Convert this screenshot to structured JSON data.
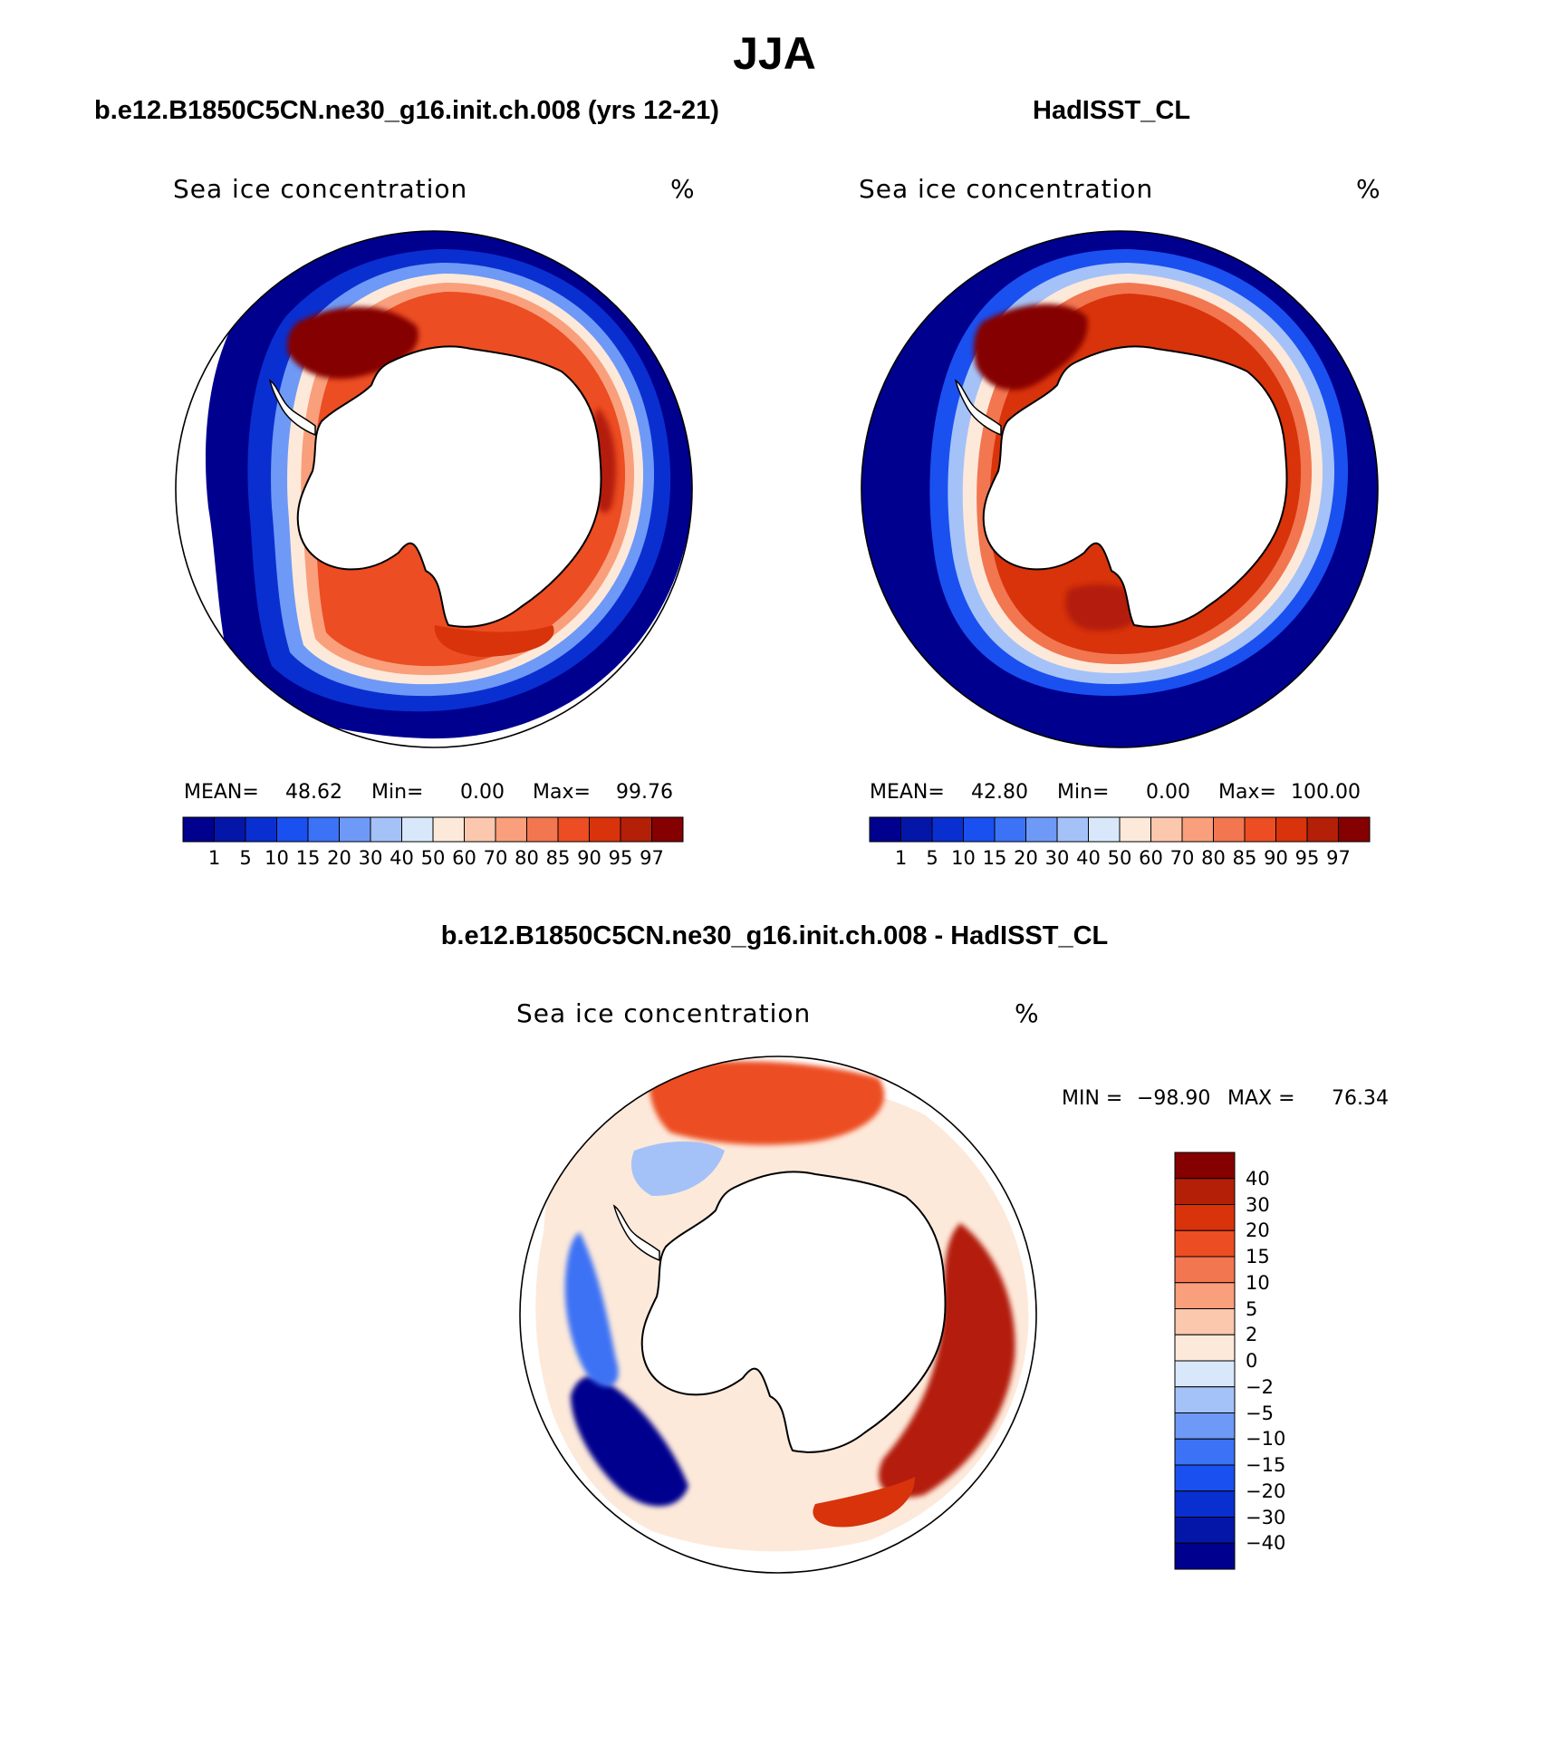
{
  "figure": {
    "title": "JJA"
  },
  "panels": [
    {
      "title": "b.e12.B1850C5CN.ne30_g16.init.ch.008 (yrs 12-21)",
      "variable": "Sea ice concentration",
      "units": "%",
      "stats": {
        "mean_label": "MEAN=",
        "mean": "48.62",
        "min_label": "Min=",
        "min": "0.00",
        "max_label": "Max=",
        "max": "99.76"
      }
    },
    {
      "title": "HadISST_CL",
      "variable": "Sea ice concentration",
      "units": "%",
      "stats": {
        "mean_label": "MEAN=",
        "mean": "42.80",
        "min_label": "Min=",
        "min": "0.00",
        "max_label": "Max=",
        "max": "100.00"
      }
    },
    {
      "title": "b.e12.B1850C5CN.ne30_g16.init.ch.008 - HadISST_CL",
      "variable": "Sea ice concentration",
      "units": "%",
      "stats": {
        "min_label": "MIN =",
        "min": "−98.90",
        "max_label": "MAX =",
        "max": "76.34"
      }
    }
  ],
  "colorbars": {
    "concentration": {
      "levels": [
        "1",
        "5",
        "10",
        "15",
        "20",
        "30",
        "40",
        "50",
        "60",
        "70",
        "80",
        "85",
        "90",
        "95",
        "97"
      ],
      "colors": [
        "#00008f",
        "#0416a8",
        "#0a2fd0",
        "#1a50f0",
        "#3c72f5",
        "#6e99f6",
        "#a4c2f8",
        "#d8e8fa",
        "#fde9da",
        "#fbc7ad",
        "#f99f7c",
        "#f27650",
        "#ec4d22",
        "#d8330b",
        "#b41f07",
        "#850000"
      ]
    },
    "difference": {
      "levels": [
        "40",
        "30",
        "20",
        "15",
        "10",
        "5",
        "2",
        "0",
        "−2",
        "−5",
        "−10",
        "−15",
        "−20",
        "−30",
        "−40"
      ],
      "colors": [
        "#850000",
        "#b41f07",
        "#d8330b",
        "#ec4d22",
        "#f27650",
        "#f99f7c",
        "#fbc7ad",
        "#fde9da",
        "#d8e8fa",
        "#a4c2f8",
        "#6e99f6",
        "#3c72f5",
        "#1a50f0",
        "#0a2fd0",
        "#0416a8",
        "#00008f"
      ]
    }
  }
}
